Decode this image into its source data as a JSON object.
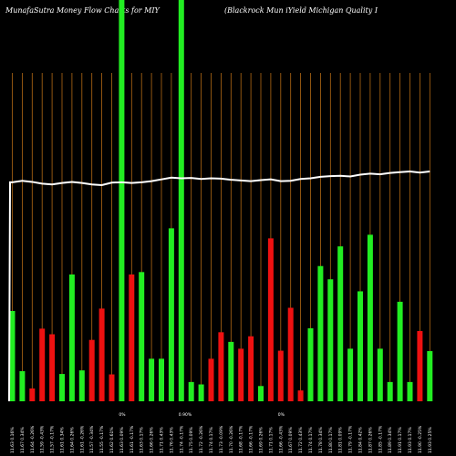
{
  "header": {
    "left": "MunafaSutra  Money Flow  Charts for MIY",
    "right": "(Blackrock Mun                    iYield Michigan  Quality I"
  },
  "colors": {
    "background": "#000000",
    "up": "#22ee22",
    "down": "#ee1111",
    "vline": "#b36a14",
    "price_line": "#ffffff"
  },
  "chart_data": {
    "type": "bar",
    "ylim": [
      0,
      100
    ],
    "categories": [
      "11.63 0.16%",
      "11.67 0.34%",
      "11.64 -0.26%",
      "11.59 -0.43%",
      "11.57 -0.17%",
      "11.61 0.34%",
      "11.64 0.26%",
      "11.61 -0.26%",
      "11.57 -0.34%",
      "11.55 -0.17%",
      "11.62 0.61%",
      "11.63 0.09%",
      "11.61 -0.17%",
      "11.63 0.17%",
      "11.66 0.26%",
      "11.71 0.43%",
      "11.76 0.43%",
      "11.74 -0.17%",
      "11.75 0.09%",
      "11.72 -0.26%",
      "11.74 0.17%",
      "11.73 -0.09%",
      "11.70 -0.26%",
      "11.68 -0.17%",
      "11.66 -0.17%",
      "11.69 0.26%",
      "11.71 0.17%",
      "11.66 -0.43%",
      "11.67 0.09%",
      "11.72 0.43%",
      "11.74 0.17%",
      "11.78 0.34%",
      "11.80 0.17%",
      "11.81 0.09%",
      "11.79 -0.17%",
      "11.84 0.42%",
      "11.87 0.26%",
      "11.85 -0.17%",
      "11.89 0.34%",
      "11.91 0.17%",
      "11.93 0.17%",
      "11.90 -0.25%",
      "11.93 0.25%"
    ],
    "values": [
      22.5,
      7.5,
      3.2,
      18.1,
      16.7,
      6.8,
      31.6,
      7.7,
      15.3,
      23.1,
      6.7,
      100,
      31.6,
      32.2,
      10.6,
      10.6,
      43.1,
      100,
      4.8,
      4.2,
      10.6,
      17.2,
      14.8,
      13.1,
      16.2,
      3.8,
      40.6,
      12.6,
      23.3,
      2.7,
      18.2,
      33.7,
      30.4,
      38.6,
      13.1,
      27.4,
      41.5,
      13.1,
      4.8,
      24.8,
      4.8,
      17.5,
      12.5
    ],
    "direction": [
      "up",
      "up",
      "down",
      "down",
      "down",
      "up",
      "up",
      "up",
      "down",
      "down",
      "down",
      "up",
      "down",
      "up",
      "up",
      "up",
      "up",
      "up",
      "up",
      "up",
      "down",
      "down",
      "up",
      "down",
      "down",
      "up",
      "down",
      "down",
      "down",
      "down",
      "up",
      "up",
      "up",
      "up",
      "up",
      "up",
      "up",
      "up",
      "up",
      "up",
      "up",
      "down",
      "up"
    ],
    "price": [
      11.63,
      11.67,
      11.64,
      11.59,
      11.57,
      11.61,
      11.64,
      11.61,
      11.57,
      11.55,
      11.62,
      11.63,
      11.61,
      11.63,
      11.66,
      11.71,
      11.76,
      11.74,
      11.75,
      11.72,
      11.74,
      11.73,
      11.7,
      11.68,
      11.66,
      11.69,
      11.71,
      11.66,
      11.67,
      11.72,
      11.74,
      11.78,
      11.8,
      11.81,
      11.79,
      11.84,
      11.87,
      11.85,
      11.89,
      11.91,
      11.93,
      11.9,
      11.93
    ],
    "mid_labels": [
      {
        "index": 11,
        "text": "0%"
      },
      {
        "index": 17,
        "text": "0.90%"
      },
      {
        "index": 27,
        "text": "0%"
      }
    ]
  }
}
